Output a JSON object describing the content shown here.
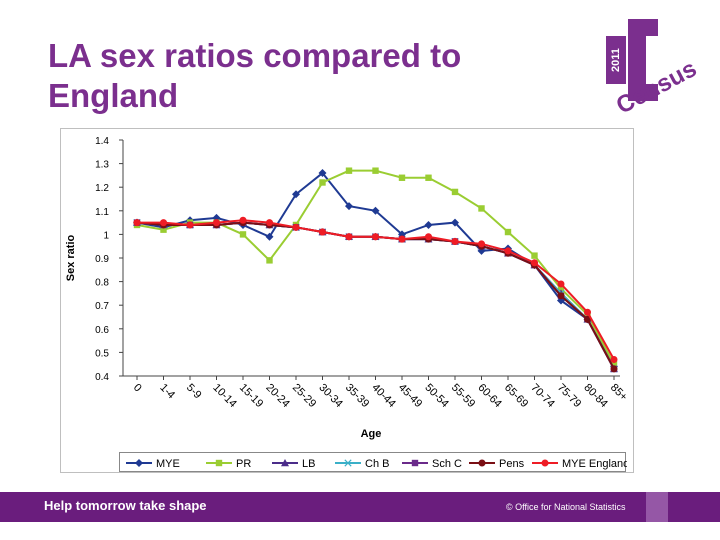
{
  "slide": {
    "title": "LA sex ratios compared to England",
    "footer_tagline": "Help tomorrow take shape",
    "footer_org": "© Office for National Statistics",
    "logo_year": "2011",
    "logo_word": "Census"
  },
  "colors": {
    "brand_purple": "#7b2f8e",
    "footer_purple": "#6a1d7d",
    "MYE": "#1f3a93",
    "PR": "#9acd32",
    "LB": "#4b2c8a",
    "Ch B": "#3ab0c8",
    "Sch C": "#6a2a8a",
    "Pens": "#7a0f14",
    "MYE England": "#ee1c25"
  },
  "chart_data": {
    "type": "line",
    "xlabel": "Age",
    "ylabel": "Sex ratio",
    "ylim": [
      0.4,
      1.4
    ],
    "yticks": [
      "1.4",
      "1.3",
      "1.2",
      "1.1",
      "1",
      "0.9",
      "0.8",
      "0.7",
      "0.6",
      "0.5",
      "0.4"
    ],
    "categories": [
      "0",
      "1-4",
      "5-9",
      "10-14",
      "15-19",
      "20-24",
      "25-29",
      "30-34",
      "35-39",
      "40-44",
      "45-49",
      "50-54",
      "55-59",
      "60-64",
      "65-69",
      "70-74",
      "75-79",
      "80-84",
      "85+"
    ],
    "grid": false,
    "legend_position": "bottom",
    "series": [
      {
        "name": "MYE",
        "marker": "diamond",
        "values": [
          1.05,
          1.03,
          1.06,
          1.07,
          1.04,
          0.99,
          1.17,
          1.26,
          1.12,
          1.1,
          1.0,
          1.04,
          1.05,
          0.93,
          0.94,
          0.87,
          0.72,
          0.64,
          0.44
        ]
      },
      {
        "name": "PR",
        "marker": "square",
        "values": [
          1.04,
          1.02,
          1.05,
          1.05,
          1.0,
          0.89,
          1.04,
          1.22,
          1.27,
          1.27,
          1.24,
          1.24,
          1.18,
          1.11,
          1.01,
          0.91,
          0.77,
          0.66,
          0.45
        ]
      },
      {
        "name": "LB",
        "marker": "triangle",
        "values": [
          1.05,
          1.04,
          1.04,
          1.04,
          1.05,
          1.04,
          1.03,
          1.01,
          0.99,
          0.99,
          0.98,
          0.98,
          0.97,
          0.95,
          0.92,
          0.87,
          0.75,
          0.64,
          0.43
        ]
      },
      {
        "name": "Ch B",
        "marker": "x",
        "values": [
          1.05,
          1.04,
          1.04,
          1.04,
          1.05,
          1.04,
          1.03,
          1.01,
          0.99,
          0.99,
          0.98,
          0.98,
          0.97,
          0.95,
          0.92,
          0.87,
          0.75,
          0.64,
          0.43
        ]
      },
      {
        "name": "Sch C",
        "marker": "square",
        "values": [
          1.05,
          1.04,
          1.04,
          1.04,
          1.05,
          1.04,
          1.03,
          1.01,
          0.99,
          0.99,
          0.98,
          0.98,
          0.97,
          0.95,
          0.92,
          0.87,
          0.74,
          0.64,
          0.43
        ]
      },
      {
        "name": "Pens",
        "marker": "circle",
        "values": [
          1.05,
          1.04,
          1.04,
          1.04,
          1.05,
          1.04,
          1.03,
          1.01,
          0.99,
          0.99,
          0.98,
          0.98,
          0.97,
          0.95,
          0.92,
          0.87,
          0.74,
          0.64,
          0.43
        ]
      },
      {
        "name": "MYE England",
        "marker": "circle",
        "values": [
          1.05,
          1.05,
          1.04,
          1.05,
          1.06,
          1.05,
          1.03,
          1.01,
          0.99,
          0.99,
          0.98,
          0.99,
          0.97,
          0.96,
          0.93,
          0.88,
          0.79,
          0.67,
          0.47
        ]
      }
    ]
  }
}
